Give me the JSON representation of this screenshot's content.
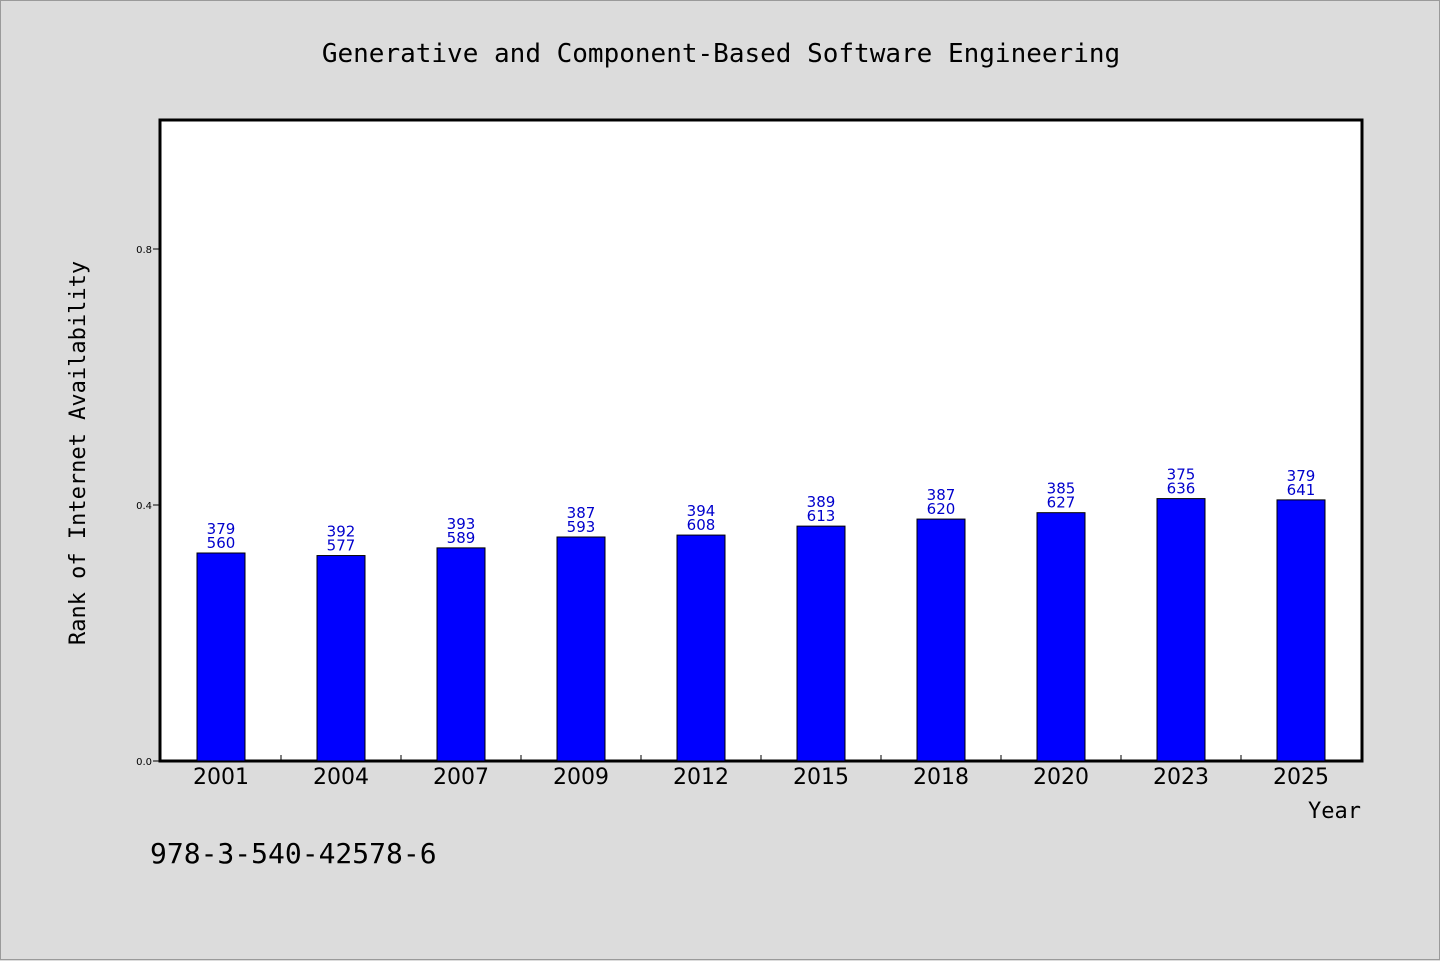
{
  "chart_data": {
    "type": "bar",
    "title": "Generative and Component-Based Software Engineering",
    "xlabel": "Year",
    "ylabel": "Rank of Internet Availability",
    "categories": [
      "2001",
      "2004",
      "2007",
      "2009",
      "2012",
      "2015",
      "2018",
      "2020",
      "2023",
      "2025"
    ],
    "values": [
      0.325,
      0.321,
      0.333,
      0.35,
      0.353,
      0.367,
      0.378,
      0.388,
      0.41,
      0.408
    ],
    "labels_top": [
      "379",
      "392",
      "393",
      "387",
      "394",
      "389",
      "387",
      "385",
      "375",
      "379"
    ],
    "labels_bottom": [
      "560",
      "577",
      "589",
      "593",
      "608",
      "613",
      "620",
      "627",
      "636",
      "641"
    ],
    "yticks": [
      "0.0",
      "0.4",
      "0.8"
    ],
    "ytick_values": [
      0.0,
      0.4,
      0.8
    ],
    "ylim": [
      0,
      1.0
    ],
    "grid": false,
    "bar_color": "#0000ff",
    "label_color": "#0000cc"
  },
  "footer": {
    "isbn": "978-3-540-42578-6"
  }
}
